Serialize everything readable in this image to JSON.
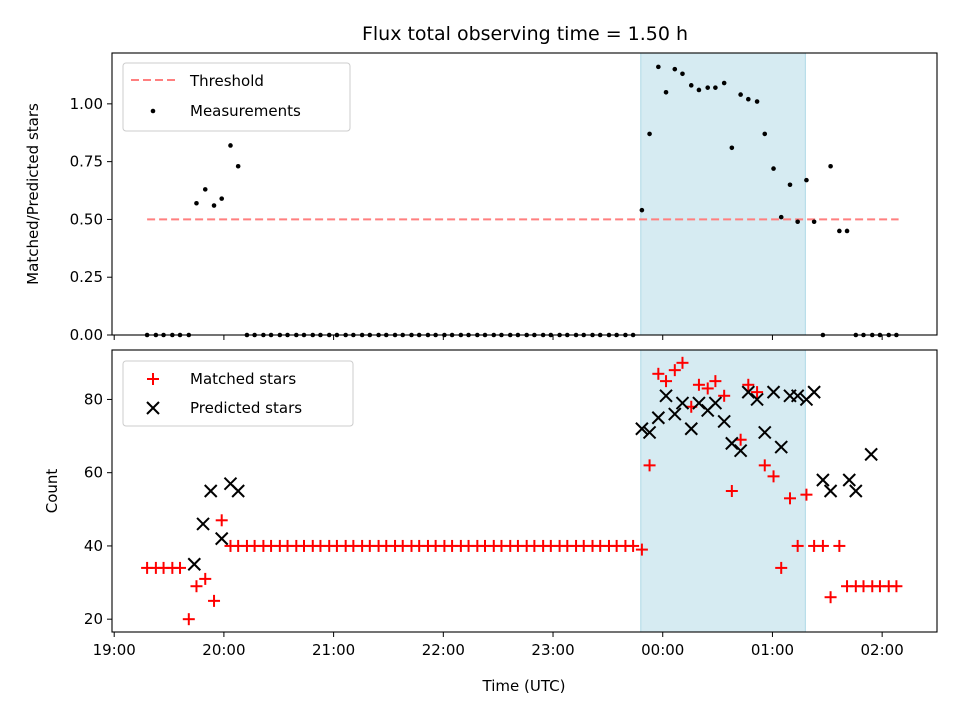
{
  "title": "Flux total observing time = 1.50 h",
  "xlabel": "Time (UTC)",
  "x_ticks": [
    "19:00",
    "20:00",
    "21:00",
    "22:00",
    "23:00",
    "00:00",
    "01:00",
    "02:00"
  ],
  "colors": {
    "threshold": "#ff7f7f",
    "measurement": "#000000",
    "matched": "#ff0000",
    "predicted": "#000000",
    "span": "#add8e6"
  },
  "chart_data": [
    {
      "type": "scatter",
      "ylabel": "Matched/Predicted stars",
      "x_unit": "hours since 19:00 UTC",
      "ylim": [
        0,
        1.22
      ],
      "xlim": [
        -0.02,
        7.5
      ],
      "y_ticks": [
        "0.00",
        "0.25",
        "0.50",
        "0.75",
        "1.00"
      ],
      "legend_position": "top-left",
      "highlight_span": [
        4.8,
        6.3
      ],
      "threshold": {
        "name": "Threshold",
        "value": 0.5,
        "x_range": [
          0.3,
          7.15
        ]
      },
      "series": [
        {
          "name": "Measurements",
          "x": [
            0.3,
            0.38,
            0.45,
            0.53,
            0.6,
            0.68,
            0.75,
            0.83,
            0.91,
            0.98,
            1.06,
            1.13,
            1.21,
            1.28,
            1.36,
            1.43,
            1.51,
            1.58,
            1.66,
            1.73,
            1.81,
            1.88,
            1.96,
            2.03,
            2.11,
            2.18,
            2.26,
            2.33,
            2.41,
            2.48,
            2.56,
            2.63,
            2.71,
            2.78,
            2.86,
            2.93,
            3.01,
            3.08,
            3.16,
            3.23,
            3.31,
            3.38,
            3.46,
            3.53,
            3.61,
            3.68,
            3.76,
            3.83,
            3.91,
            3.98,
            4.06,
            4.13,
            4.21,
            4.28,
            4.36,
            4.43,
            4.51,
            4.58,
            4.66,
            4.73,
            4.81,
            4.88,
            4.96,
            5.03,
            5.11,
            5.18,
            5.26,
            5.33,
            5.41,
            5.48,
            5.56,
            5.63,
            5.71,
            5.78,
            5.86,
            5.93,
            6.01,
            6.08,
            6.16,
            6.23,
            6.31,
            6.38,
            6.46,
            6.53,
            6.61,
            6.68,
            6.76,
            6.83,
            6.91,
            6.98,
            7.06,
            7.13
          ],
          "y": [
            0,
            0,
            0,
            0,
            0,
            0,
            0.57,
            0.63,
            0.56,
            0.59,
            0.82,
            0.73,
            0,
            0,
            0,
            0,
            0,
            0,
            0,
            0,
            0,
            0,
            0,
            0,
            0,
            0,
            0,
            0,
            0,
            0,
            0,
            0,
            0,
            0,
            0,
            0,
            0,
            0,
            0,
            0,
            0,
            0,
            0,
            0,
            0,
            0,
            0,
            0,
            0,
            0,
            0,
            0,
            0,
            0,
            0,
            0,
            0,
            0,
            0,
            0,
            0.54,
            0.87,
            1.16,
            1.05,
            1.15,
            1.13,
            1.08,
            1.06,
            1.07,
            1.07,
            1.09,
            0.81,
            1.04,
            1.02,
            1.01,
            0.87,
            0.72,
            0.51,
            0.65,
            0.49,
            0.67,
            0.49,
            0,
            0.73,
            0.45,
            0.45,
            0,
            0,
            0,
            0,
            0,
            0
          ]
        }
      ]
    },
    {
      "type": "scatter",
      "ylabel": "Count",
      "x_unit": "hours since 19:00 UTC",
      "ylim": [
        16.5,
        93.5
      ],
      "xlim": [
        -0.02,
        7.5
      ],
      "y_ticks": [
        "20",
        "40",
        "60",
        "80"
      ],
      "legend_position": "top-left",
      "highlight_span": [
        4.8,
        6.3
      ],
      "series": [
        {
          "name": "Matched stars",
          "marker": "+",
          "x": [
            0.3,
            0.38,
            0.45,
            0.53,
            0.6,
            0.68,
            0.75,
            0.83,
            0.91,
            0.98,
            1.06,
            1.13,
            1.21,
            1.28,
            1.36,
            1.43,
            1.51,
            1.58,
            1.66,
            1.73,
            1.81,
            1.88,
            1.96,
            2.03,
            2.11,
            2.18,
            2.26,
            2.33,
            2.41,
            2.48,
            2.56,
            2.63,
            2.71,
            2.78,
            2.86,
            2.93,
            3.01,
            3.08,
            3.16,
            3.23,
            3.31,
            3.38,
            3.46,
            3.53,
            3.61,
            3.68,
            3.76,
            3.83,
            3.91,
            3.98,
            4.06,
            4.13,
            4.21,
            4.28,
            4.36,
            4.43,
            4.51,
            4.58,
            4.66,
            4.73,
            4.81,
            4.88,
            4.96,
            5.03,
            5.11,
            5.18,
            5.26,
            5.33,
            5.41,
            5.48,
            5.56,
            5.63,
            5.71,
            5.78,
            5.86,
            5.93,
            6.01,
            6.08,
            6.16,
            6.23,
            6.31,
            6.38,
            6.46,
            6.53,
            6.61,
            6.68,
            6.76,
            6.83,
            6.91,
            6.98,
            7.06,
            7.13
          ],
          "y": [
            34,
            34,
            34,
            34,
            34,
            20,
            29,
            31,
            25,
            47,
            40,
            40,
            40,
            40,
            40,
            40,
            40,
            40,
            40,
            40,
            40,
            40,
            40,
            40,
            40,
            40,
            40,
            40,
            40,
            40,
            40,
            40,
            40,
            40,
            40,
            40,
            40,
            40,
            40,
            40,
            40,
            40,
            40,
            40,
            40,
            40,
            40,
            40,
            40,
            40,
            40,
            40,
            40,
            40,
            40,
            40,
            40,
            40,
            40,
            40,
            39,
            62,
            87,
            85,
            88,
            90,
            78,
            84,
            83,
            85,
            81,
            55,
            69,
            84,
            82,
            62,
            59,
            34,
            53,
            40,
            54,
            40,
            40,
            26,
            40,
            29,
            29,
            29,
            29,
            29,
            29,
            29
          ]
        },
        {
          "name": "Predicted stars",
          "marker": "x",
          "x": [
            4.81,
            4.88,
            4.96,
            5.03,
            5.11,
            5.18,
            5.26,
            5.33,
            5.41,
            5.48,
            5.56,
            5.63,
            5.71,
            5.78,
            5.86,
            5.93,
            6.01,
            6.08,
            6.16,
            6.23,
            6.31,
            6.38,
            6.46,
            6.53,
            6.7,
            6.76,
            6.9,
            0.73,
            0.81,
            0.88,
            0.98,
            1.06,
            1.13
          ],
          "y": [
            72,
            71,
            75,
            81,
            76,
            79,
            72,
            79,
            77,
            79,
            74,
            68,
            66,
            82,
            80,
            71,
            82,
            67,
            81,
            81,
            80,
            82,
            58,
            55,
            58,
            55,
            65,
            35,
            46,
            55,
            42,
            57,
            55
          ]
        }
      ]
    }
  ]
}
